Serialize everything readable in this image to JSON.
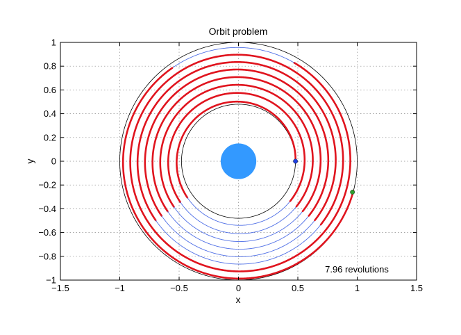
{
  "chart_data": {
    "type": "line",
    "title": "Orbit problem",
    "xlabel": "x",
    "ylabel": "y",
    "xlim": [
      -1.5,
      1.5
    ],
    "ylim": [
      -1,
      1
    ],
    "xticks": [
      -1.5,
      -1,
      -0.5,
      0,
      0.5,
      1,
      1.5
    ],
    "xtick_labels": [
      "−1.5",
      "−1",
      "−0.5",
      "0",
      "0.5",
      "1",
      "1.5"
    ],
    "yticks": [
      -1,
      -0.8,
      -0.6,
      -0.4,
      -0.2,
      0,
      0.2,
      0.4,
      0.6,
      0.8,
      1
    ],
    "ytick_labels": [
      "−1",
      "−0.8",
      "−0.6",
      "−0.4",
      "−0.2",
      "0",
      "0.2",
      "0.4",
      "0.6",
      "0.8",
      "1"
    ],
    "grid": true,
    "annotation": "7.96 revolutions",
    "planet": {
      "center": [
        0,
        0
      ],
      "radius": 0.15,
      "color": "#3399ff"
    },
    "inner_orbit_radius": 0.48,
    "outer_orbit_radius": 1.0,
    "spiral": {
      "start_radius": 0.48,
      "end_radius": 1.0,
      "revolutions": 7.96,
      "start_point": [
        0.48,
        0
      ],
      "end_point": [
        0.96,
        -0.26
      ]
    },
    "series": [
      {
        "name": "inner orbit",
        "color": "#000000"
      },
      {
        "name": "outer orbit",
        "color": "#000000"
      },
      {
        "name": "coast arcs",
        "color": "#4f6fe6"
      },
      {
        "name": "thrust arcs",
        "color": "#e0141e"
      }
    ],
    "markers": [
      {
        "name": "start",
        "x": 0.48,
        "y": 0,
        "color": "#1f3fe0"
      },
      {
        "name": "end",
        "x": 0.96,
        "y": -0.26,
        "color": "#2f9e2f"
      }
    ]
  }
}
